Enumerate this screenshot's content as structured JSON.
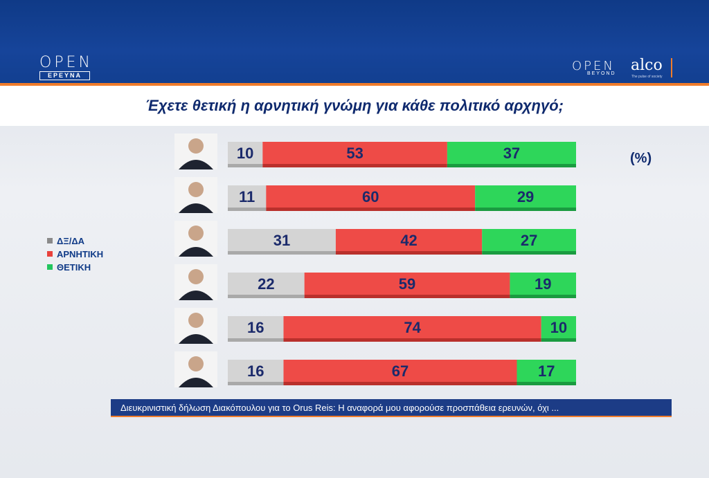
{
  "header": {
    "logo_left": "OPEN",
    "logo_left_sub": "ΕΡΕΥΝΑ",
    "logo_right": "OPEN",
    "logo_right_sub": "BEYOND",
    "partner": "alco",
    "partner_sub": "The pulse of society"
  },
  "title": "Έχετε θετική η αρνητική γνώμη για κάθε πολιτικό αρχηγό;",
  "unit_label": "(%)",
  "legend": [
    {
      "label": "ΔΞ/ΔΑ",
      "color": "#8a8a8a"
    },
    {
      "label": "ΑΡΝΗΤΙΚΗ",
      "color": "#e8413c"
    },
    {
      "label": "ΘΕΤΙΚΗ",
      "color": "#22c55e"
    }
  ],
  "ticker": "Διευκρινιστική δήλωση Διακόπουλου για το Orus Reis: Η αναφορά μου αφορούσε προσπάθεια ερευνών, όχι ...",
  "chart_data": {
    "type": "bar",
    "stacked": true,
    "orientation": "horizontal",
    "unit": "%",
    "categories": [
      "",
      "",
      "",
      "",
      "",
      ""
    ],
    "series": [
      {
        "name": "ΔΞ/ΔΑ",
        "color": "#d4d4d4",
        "values": [
          10,
          11,
          31,
          22,
          16,
          16
        ]
      },
      {
        "name": "ΑΡΝΗΤΙΚΗ",
        "color": "#ee4b47",
        "values": [
          53,
          60,
          42,
          59,
          74,
          67
        ]
      },
      {
        "name": "ΘΕΤΙΚΗ",
        "color": "#2ed65a",
        "values": [
          37,
          29,
          27,
          19,
          10,
          17
        ]
      }
    ],
    "xlim": [
      0,
      100
    ]
  }
}
